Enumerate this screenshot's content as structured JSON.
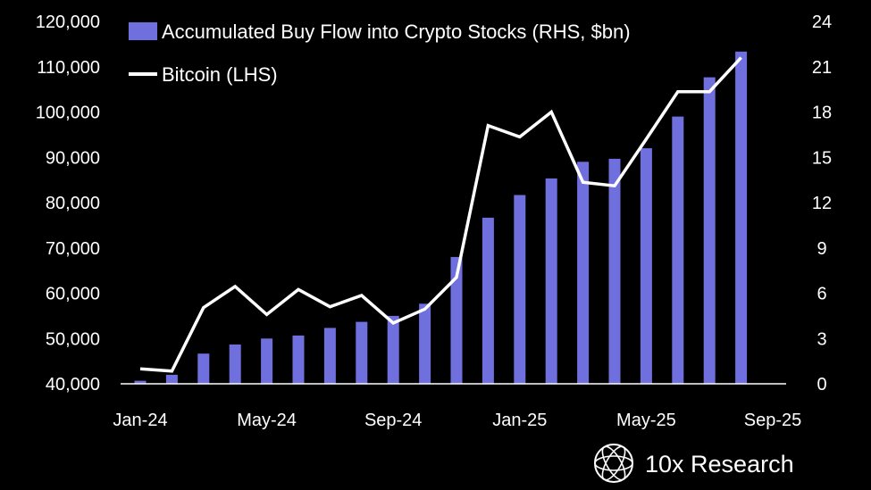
{
  "chart_data": {
    "type": "bar+line",
    "legend": {
      "bar_label": "Accumulated Buy Flow into Crypto Stocks (RHS, $bn)",
      "line_label": "Bitcoin (LHS)",
      "placement": "top-left"
    },
    "x_tick_labels": [
      "Jan-24",
      "May-24",
      "Sep-24",
      "Jan-25",
      "May-25",
      "Sep-25"
    ],
    "left_axis": {
      "ylim": [
        40000,
        120000
      ],
      "ticks": [
        "40,000",
        "50,000",
        "60,000",
        "70,000",
        "80,000",
        "90,000",
        "100,000",
        "110,000",
        "120,000"
      ]
    },
    "right_axis": {
      "ylim": [
        0,
        24
      ],
      "ticks": [
        "0",
        "3",
        "6",
        "9",
        "12",
        "15",
        "18",
        "21",
        "24"
      ]
    },
    "x": [
      "2024-01",
      "2024-02",
      "2024-03",
      "2024-04",
      "2024-05",
      "2024-06",
      "2024-07",
      "2024-08",
      "2024-09",
      "2024-10",
      "2024-11",
      "2024-12",
      "2025-01",
      "2025-02",
      "2025-03",
      "2025-04",
      "2025-05",
      "2025-06",
      "2025-07",
      "2025-08"
    ],
    "series": [
      {
        "name": "Accumulated Buy Flow into Crypto Stocks (RHS, $bn)",
        "axis": "right",
        "type": "bar",
        "color": "#6f6fde",
        "values": [
          0.2,
          0.6,
          2.0,
          2.6,
          3.0,
          3.2,
          3.7,
          4.1,
          4.5,
          5.3,
          8.4,
          11.0,
          12.5,
          13.6,
          14.7,
          14.9,
          15.6,
          17.7,
          20.3,
          22.0
        ]
      },
      {
        "name": "Bitcoin (LHS)",
        "axis": "left",
        "type": "line",
        "color": "#ffffff",
        "values": [
          43300,
          42800,
          56800,
          61500,
          55300,
          60800,
          57000,
          59500,
          53400,
          56500,
          63500,
          97000,
          94500,
          100000,
          84500,
          83700,
          94000,
          104500,
          104500,
          112000
        ]
      }
    ],
    "grid": false
  },
  "brand": {
    "name": "10x Research",
    "icon": "globe-logo-icon"
  }
}
